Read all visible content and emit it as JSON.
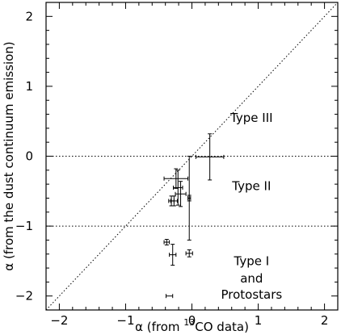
{
  "chart_data": {
    "type": "scatter",
    "title": "",
    "xlabel": "α (from ¹³CO data)",
    "xlabel_parts": {
      "pre": "α (from ",
      "sup": "13",
      "post": "CO data)"
    },
    "ylabel": "α (from the dust continuum emission)",
    "xlim": [
      -2.2,
      2.2
    ],
    "ylim": [
      -2.2,
      2.2
    ],
    "xticks": [
      -2,
      -1,
      0,
      1,
      2
    ],
    "yticks": [
      -2,
      -1,
      0,
      1,
      2
    ],
    "x_tick_labels": [
      "−2",
      "−1",
      "0",
      "1",
      "2"
    ],
    "y_tick_labels": [
      "−2",
      "−1",
      "0",
      "1",
      "2"
    ],
    "grid": false,
    "reference_lines": [
      {
        "kind": "diagonal",
        "equation": "y = x",
        "style": "dotted"
      },
      {
        "kind": "horizontal",
        "y": 0,
        "style": "dotted"
      },
      {
        "kind": "horizontal",
        "y": -1,
        "style": "dotted"
      }
    ],
    "region_labels": [
      {
        "text": "Type III",
        "x": 0.9,
        "y": 0.55
      },
      {
        "text": "Type II",
        "x": 0.9,
        "y": -0.43
      },
      {
        "text": "Type I",
        "x": 0.9,
        "y": -1.5
      },
      {
        "text": "and",
        "x": 0.9,
        "y": -1.75
      },
      {
        "text": "Protostars",
        "x": 0.9,
        "y": -1.98
      }
    ],
    "points": [
      {
        "x": 0.27,
        "y": -0.01,
        "xerr": 0.21,
        "yerr": 0.33
      },
      {
        "x": -0.04,
        "y": -0.6,
        "xerr": 0.0,
        "yerr": 0.6
      },
      {
        "x": -0.24,
        "y": -0.32,
        "xerr": 0.18,
        "yerr": 0.14
      },
      {
        "x": -0.21,
        "y": -0.45,
        "xerr": 0.07,
        "yerr": 0.25
      },
      {
        "x": -0.17,
        "y": -0.54,
        "xerr": 0.08,
        "yerr": 0.18
      },
      {
        "x": -0.27,
        "y": -0.64,
        "xerr": 0.05,
        "yerr": 0.07
      },
      {
        "x": -0.31,
        "y": -0.64,
        "xerr": 0.04,
        "yerr": 0.07
      },
      {
        "x": -0.04,
        "y": -0.6,
        "xerr": 0.02,
        "yerr": 0.04
      },
      {
        "x": -0.38,
        "y": -1.23,
        "xerr": 0.04,
        "yerr": 0.04
      },
      {
        "x": -0.29,
        "y": -1.41,
        "xerr": 0.05,
        "yerr": 0.15
      },
      {
        "x": -0.04,
        "y": -1.39,
        "xerr": 0.05,
        "yerr": 0.05
      },
      {
        "x": -0.34,
        "y": -2.0,
        "xerr": 0.05,
        "yerr": 0.0
      }
    ]
  }
}
